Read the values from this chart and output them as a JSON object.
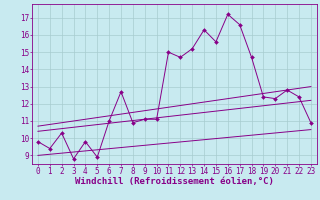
{
  "bg_color": "#c8eaf0",
  "grid_color": "#a8ccd0",
  "line_color": "#880088",
  "xlabel": "Windchill (Refroidissement éolien,°C)",
  "xlabel_fontsize": 6.5,
  "tick_fontsize": 5.5,
  "xlim": [
    -0.5,
    23.5
  ],
  "ylim": [
    8.5,
    17.8
  ],
  "yticks": [
    9,
    10,
    11,
    12,
    13,
    14,
    15,
    16,
    17
  ],
  "xticks": [
    0,
    1,
    2,
    3,
    4,
    5,
    6,
    7,
    8,
    9,
    10,
    11,
    12,
    13,
    14,
    15,
    16,
    17,
    18,
    19,
    20,
    21,
    22,
    23
  ],
  "main_x": [
    0,
    1,
    2,
    3,
    4,
    5,
    6,
    7,
    8,
    9,
    10,
    11,
    12,
    13,
    14,
    15,
    16,
    17,
    18,
    19,
    20,
    21,
    22,
    23
  ],
  "main_y": [
    9.8,
    9.4,
    10.3,
    8.8,
    9.8,
    8.9,
    11.0,
    12.7,
    10.9,
    11.1,
    11.1,
    15.0,
    14.7,
    15.2,
    16.3,
    15.6,
    17.2,
    16.6,
    14.7,
    12.4,
    12.3,
    12.8,
    12.4,
    10.9
  ],
  "line1_x": [
    0,
    23
  ],
  "line1_y": [
    9.0,
    10.5
  ],
  "line2_x": [
    0,
    23
  ],
  "line2_y": [
    10.4,
    12.2
  ],
  "line3_x": [
    0,
    23
  ],
  "line3_y": [
    10.7,
    13.0
  ]
}
